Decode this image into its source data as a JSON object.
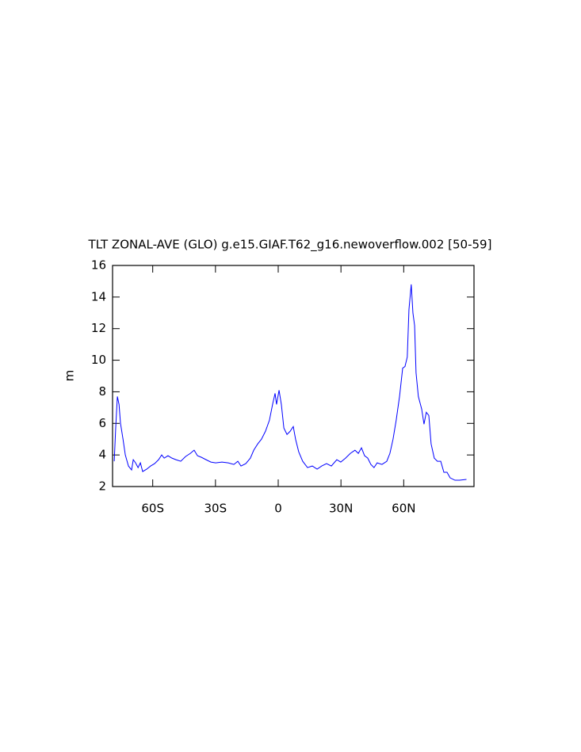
{
  "chart_data": {
    "type": "line",
    "title": "TLT ZONAL-AVE (GLO) g.e15.GIAF.T62_g16.newoverflow.002 [50-59]",
    "y_label": "m",
    "xlim": [
      -79.2,
      93.6
    ],
    "ylim": [
      2,
      16
    ],
    "xticks": [
      {
        "value": -60,
        "label": "60S"
      },
      {
        "value": -30,
        "label": "30S"
      },
      0,
      {
        "value": 30,
        "label": "30N"
      },
      {
        "value": 60,
        "label": "60N"
      }
    ],
    "yticks": [
      2,
      4,
      6,
      8,
      10,
      12,
      14,
      16
    ],
    "grid": false,
    "series": [
      {
        "color": "#0000ff",
        "x": [
          -78.4,
          -77.7,
          -76.9,
          -76.1,
          -75.4,
          -74.2,
          -73.1,
          -71.6,
          -70.1,
          -69.3,
          -68.2,
          -67.0,
          -65.9,
          -64.8,
          -62.9,
          -61.0,
          -59.1,
          -57.2,
          -55.7,
          -54.5,
          -52.7,
          -50.8,
          -48.9,
          -46.6,
          -44.3,
          -42.0,
          -40.2,
          -38.6,
          -36.7,
          -34.5,
          -32.2,
          -29.9,
          -26.9,
          -23.9,
          -21.2,
          -19.3,
          -17.8,
          -15.5,
          -13.3,
          -11.7,
          -9.8,
          -8.0,
          -6.1,
          -4.2,
          -2.7,
          -1.5,
          -0.8,
          0.4,
          1.5,
          2.7,
          4.2,
          5.7,
          7.2,
          8.3,
          9.8,
          11.7,
          14.0,
          16.3,
          18.6,
          20.8,
          23.1,
          25.4,
          28.0,
          29.9,
          32.2,
          34.5,
          36.7,
          38.3,
          39.8,
          41.3,
          42.8,
          44.3,
          45.8,
          47.3,
          49.6,
          51.9,
          53.4,
          54.9,
          56.4,
          58.0,
          59.5,
          60.6,
          61.7,
          62.5,
          63.6,
          64.4,
          65.2,
          65.9,
          67.0,
          68.6,
          69.7,
          70.8,
          72.0,
          73.1,
          74.6,
          76.1,
          77.7,
          79.2,
          80.7,
          82.2,
          84.5,
          86.7,
          90.0
        ],
        "values": [
          3.6,
          5.7,
          7.7,
          7.2,
          6.0,
          5.0,
          4.0,
          3.3,
          3.05,
          3.7,
          3.5,
          3.2,
          3.5,
          2.95,
          3.1,
          3.3,
          3.45,
          3.7,
          4.0,
          3.8,
          3.95,
          3.8,
          3.7,
          3.6,
          3.9,
          4.1,
          4.3,
          3.95,
          3.85,
          3.7,
          3.55,
          3.5,
          3.55,
          3.5,
          3.4,
          3.6,
          3.3,
          3.45,
          3.8,
          4.3,
          4.7,
          5.0,
          5.5,
          6.2,
          7.2,
          7.9,
          7.2,
          8.1,
          7.2,
          5.7,
          5.3,
          5.5,
          5.8,
          5.0,
          4.2,
          3.6,
          3.2,
          3.3,
          3.1,
          3.3,
          3.45,
          3.3,
          3.7,
          3.55,
          3.8,
          4.1,
          4.3,
          4.1,
          4.45,
          3.95,
          3.8,
          3.4,
          3.2,
          3.5,
          3.4,
          3.6,
          4.1,
          5.0,
          6.2,
          7.7,
          9.5,
          9.6,
          10.2,
          13.2,
          14.8,
          13.0,
          12.2,
          9.2,
          7.7,
          6.9,
          5.95,
          6.7,
          6.5,
          4.7,
          3.8,
          3.6,
          3.6,
          2.9,
          2.9,
          2.55,
          2.4,
          2.4,
          2.45
        ]
      }
    ]
  }
}
